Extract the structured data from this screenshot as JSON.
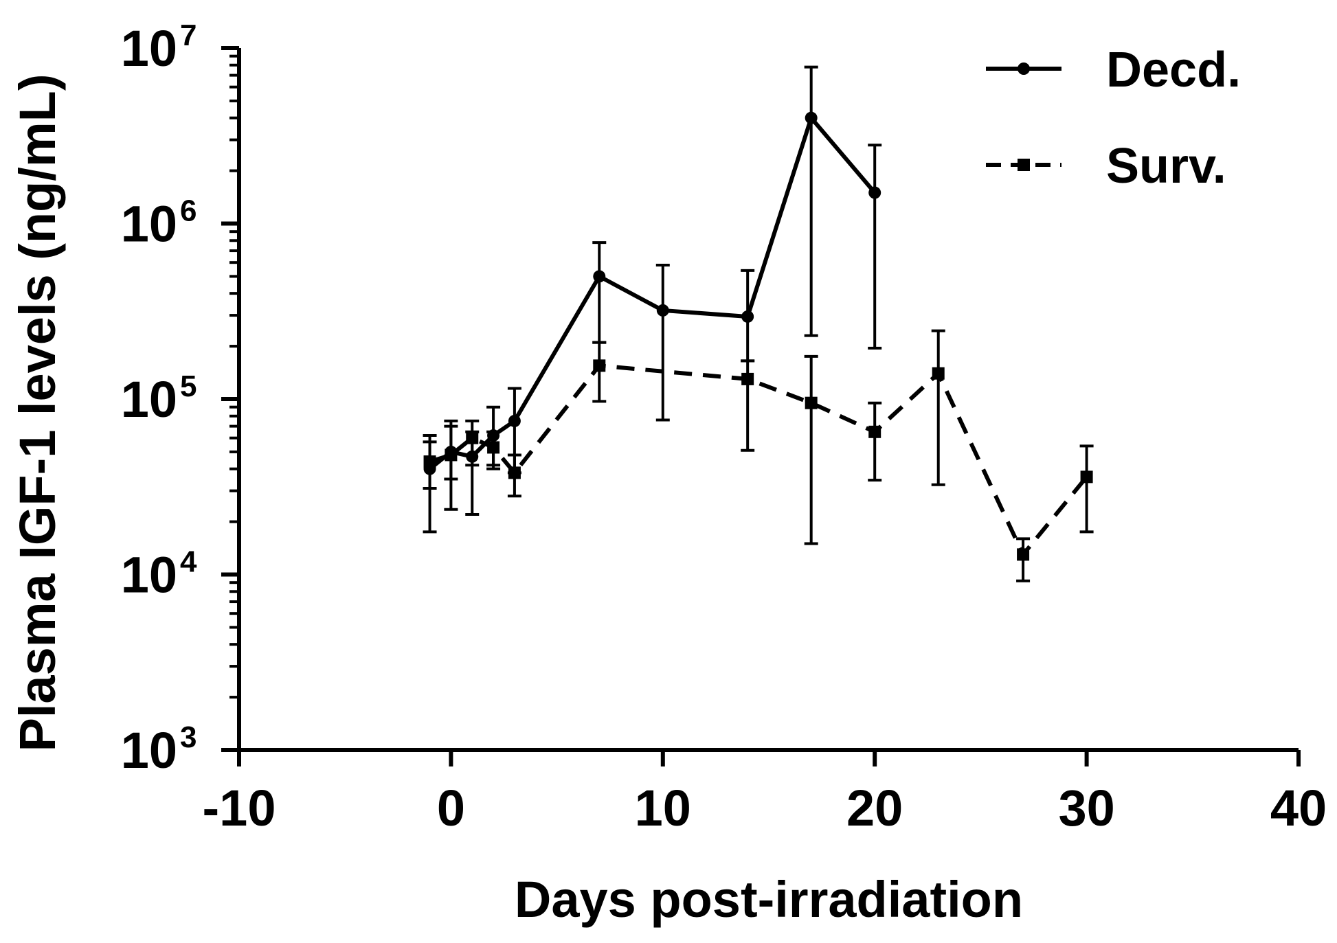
{
  "chart_data": {
    "type": "line",
    "title": "",
    "xlabel": "Days post-irradiation",
    "ylabel": "Plasma IGF-1 levels (ng/mL)",
    "xlim": [
      -10,
      40
    ],
    "ylim": [
      1000,
      10000000
    ],
    "yscale": "log",
    "x_ticks": [
      -10,
      0,
      10,
      20,
      30,
      40
    ],
    "x_tick_labels": [
      "-10",
      "0",
      "10",
      "20",
      "30",
      "40"
    ],
    "y_ticks": [
      {
        "value": 1000,
        "base": "10",
        "exp": "3"
      },
      {
        "value": 10000,
        "base": "10",
        "exp": "4"
      },
      {
        "value": 100000,
        "base": "10",
        "exp": "5"
      },
      {
        "value": 1000000,
        "base": "10",
        "exp": "6"
      },
      {
        "value": 10000000,
        "base": "10",
        "exp": "7"
      }
    ],
    "legend_position": "top-right",
    "series": [
      {
        "name": "Decd.",
        "line_style": "solid",
        "marker": "circle",
        "color": "#000000",
        "x": [
          -1,
          0,
          1,
          2,
          3,
          7,
          10,
          14,
          17,
          20
        ],
        "y": [
          40000,
          50000,
          47000,
          62000,
          75000,
          500000,
          320000,
          295000,
          4000000,
          1500000
        ],
        "err_low": [
          17500,
          35000,
          22000,
          40000,
          38000,
          210000,
          76000,
          165000,
          230000,
          195000
        ],
        "err_high": [
          62000,
          70000,
          65000,
          90000,
          115000,
          780000,
          580000,
          540000,
          7800000,
          2800000
        ]
      },
      {
        "name": "Surv.",
        "line_style": "dashed",
        "marker": "square",
        "color": "#000000",
        "x": [
          -1,
          0,
          1,
          2,
          3,
          7,
          14,
          17,
          20,
          23,
          27,
          30
        ],
        "y": [
          44000,
          48000,
          60000,
          53000,
          38000,
          155000,
          130000,
          95000,
          65000,
          140000,
          13000,
          36000
        ],
        "err_low": [
          31000,
          23500,
          42000,
          42000,
          28000,
          97000,
          51000,
          15000,
          34500,
          32500,
          9200,
          17500
        ],
        "err_high": [
          57000,
          75000,
          75000,
          65000,
          48000,
          210000,
          165000,
          175000,
          95000,
          245000,
          16000,
          54000
        ]
      }
    ]
  }
}
